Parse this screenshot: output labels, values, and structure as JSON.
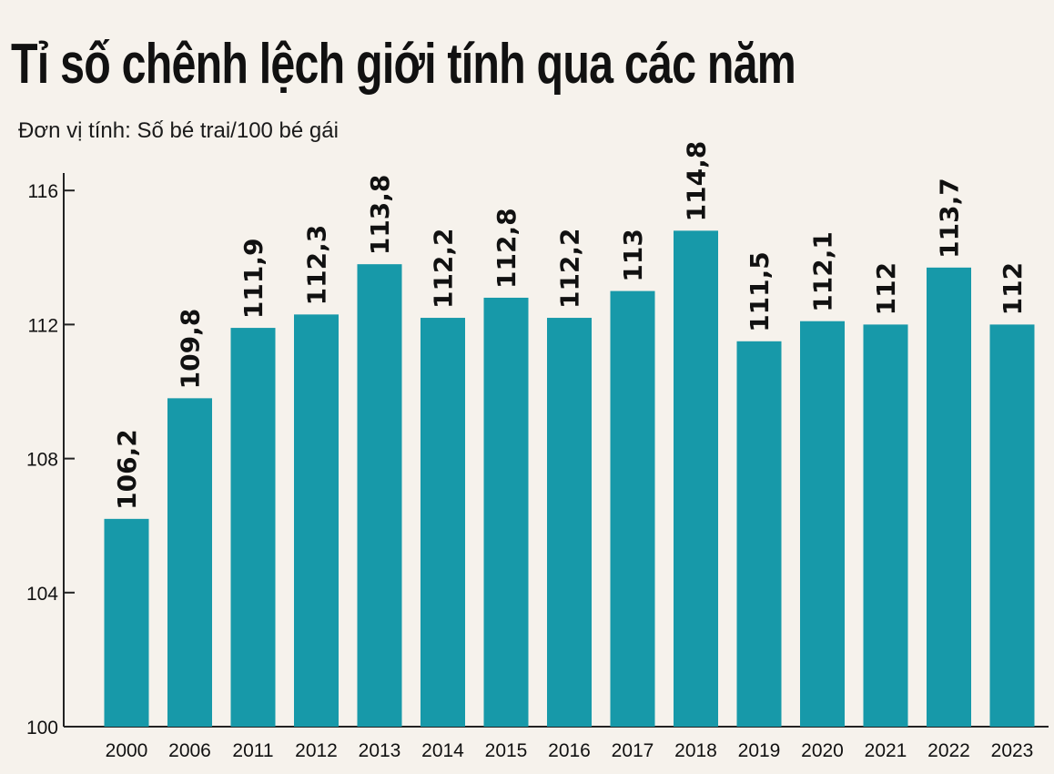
{
  "title": "Tỉ số chênh lệch giới tính qua các năm",
  "subtitle": "Đơn vị tính: Số bé trai/100 bé gái",
  "colors": {
    "bar": "#1799a9",
    "background": "#f6f2ec",
    "text": "#111111",
    "axis": "#222222"
  },
  "chart_data": {
    "type": "bar",
    "title": "Tỉ số chênh lệch giới tính qua các năm",
    "subtitle": "Đơn vị tính: Số bé trai/100 bé gái",
    "xlabel": "",
    "ylabel": "",
    "categories": [
      "2000",
      "2006",
      "2011",
      "2012",
      "2013",
      "2014",
      "2015",
      "2016",
      "2017",
      "2018",
      "2019",
      "2020",
      "2021",
      "2022",
      "2023"
    ],
    "values": [
      106.2,
      109.8,
      111.9,
      112.3,
      113.8,
      112.2,
      112.8,
      112.2,
      113,
      114.8,
      111.5,
      112.1,
      112,
      113.7,
      112
    ],
    "data_labels": [
      "106,2",
      "109,8",
      "111,9",
      "112,3",
      "113,8",
      "112,2",
      "112,8",
      "112,2",
      "113",
      "114,8",
      "111,5",
      "112,1",
      "112",
      "113,7",
      "112"
    ],
    "yticks": [
      100,
      104,
      108,
      112,
      116
    ],
    "ylim": [
      100,
      116.5
    ],
    "grid": false,
    "legend": "none"
  }
}
